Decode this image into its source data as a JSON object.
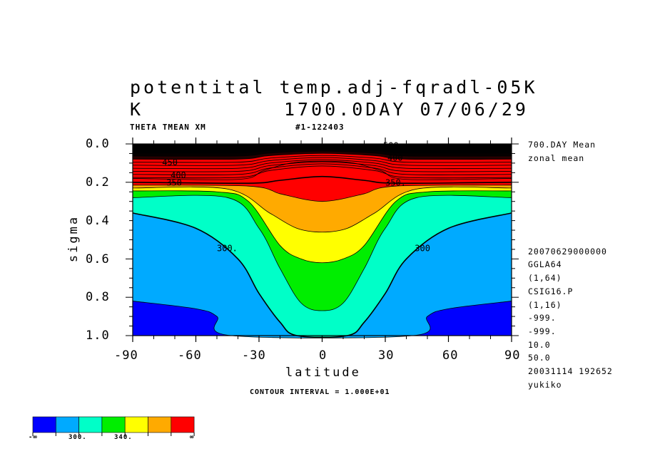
{
  "header": {
    "title_line1": "potentital temp.adj-fqradl-05K",
    "title_line2_left": "K",
    "title_line2_right": "1700.0DAY 07/06/29",
    "sub_left": "THETA TMEAN XM",
    "sub_right": "#1-122403"
  },
  "right_info": {
    "top": [
      "700.DAY Mean",
      "zonal mean"
    ],
    "bottom": [
      "20070629000000",
      "GGLA64",
      "(1,64)",
      "CSIG16.P",
      "(1,16)",
      "-999.",
      "-999.",
      "10.0",
      "50.0",
      "20031114 192652",
      "yukiko"
    ]
  },
  "contour_interval": "CONTOUR INTERVAL = 1.000E+01",
  "colorbar": {
    "colors": [
      "#0000ff",
      "#00aaff",
      "#00ffc8",
      "#00ee00",
      "#ffff00",
      "#ffaa00",
      "#ff0000"
    ],
    "labels": [
      "-∞",
      "300.",
      "340.",
      "∞"
    ]
  },
  "chart_data": {
    "type": "contour",
    "xlabel": "latitude",
    "ylabel": "sigma",
    "xlim": [
      -90,
      90
    ],
    "ylim": [
      1.0,
      0.0
    ],
    "x_ticks": [
      "-90",
      "-60",
      "-30",
      "0",
      "30",
      "60",
      "90"
    ],
    "y_ticks": [
      "0.0",
      "0.2",
      "0.4",
      "0.6",
      "0.8",
      "1.0"
    ],
    "contour_labels": [
      "450",
      "400",
      "350",
      "300",
      "350.",
      "300.",
      "300",
      "400",
      "450",
      "500"
    ],
    "levels": [
      290,
      300,
      310,
      320,
      330,
      340,
      350,
      360
    ],
    "level_colors": [
      "#0000ff",
      "#00aaff",
      "#00ffc8",
      "#00ee00",
      "#ffff00",
      "#ffaa00",
      "#ff0000"
    ],
    "isolines": [
      {
        "value": 290,
        "sides": [
          [
            -90,
            0.82
          ],
          [
            -60,
            0.86
          ],
          [
            -50,
            0.9
          ],
          [
            -43,
            1.0
          ]
        ],
        "symmetric": true
      },
      {
        "value": 300,
        "sides": [
          [
            -90,
            0.36
          ],
          [
            -60,
            0.44
          ],
          [
            -40,
            0.6
          ],
          [
            -30,
            0.78
          ],
          [
            -20,
            0.93
          ],
          [
            -12,
            1.0
          ]
        ],
        "symmetric": true
      },
      {
        "value": 310,
        "sides": [
          [
            -90,
            0.28
          ],
          [
            -45,
            0.28
          ],
          [
            -30,
            0.44
          ],
          [
            -20,
            0.65
          ],
          [
            -10,
            0.83
          ],
          [
            0,
            0.87
          ]
        ],
        "symmetric": true
      },
      {
        "value": 320,
        "sides": [
          [
            -90,
            0.245
          ],
          [
            -50,
            0.25
          ],
          [
            -35,
            0.3
          ],
          [
            -20,
            0.53
          ],
          [
            -10,
            0.6
          ],
          [
            0,
            0.62
          ]
        ],
        "symmetric": true
      },
      {
        "value": 330,
        "sides": [
          [
            -90,
            0.23
          ],
          [
            -45,
            0.235
          ],
          [
            -25,
            0.36
          ],
          [
            -12,
            0.44
          ],
          [
            0,
            0.46
          ]
        ],
        "symmetric": true
      },
      {
        "value": 340,
        "sides": [
          [
            -90,
            0.215
          ],
          [
            -35,
            0.22
          ],
          [
            -20,
            0.26
          ],
          [
            -8,
            0.29
          ],
          [
            0,
            0.3
          ]
        ],
        "symmetric": true
      },
      {
        "value": 350,
        "sides": [
          [
            -90,
            0.2
          ],
          [
            -35,
            0.205
          ],
          [
            -20,
            0.19
          ],
          [
            0,
            0.17
          ]
        ],
        "symmetric": true
      },
      {
        "value": 360,
        "sides": [
          [
            -90,
            0.18
          ],
          [
            -40,
            0.185
          ],
          [
            -28,
            0.14
          ],
          [
            -15,
            0.1
          ],
          [
            0,
            0.09
          ]
        ],
        "symmetric": true
      }
    ]
  }
}
